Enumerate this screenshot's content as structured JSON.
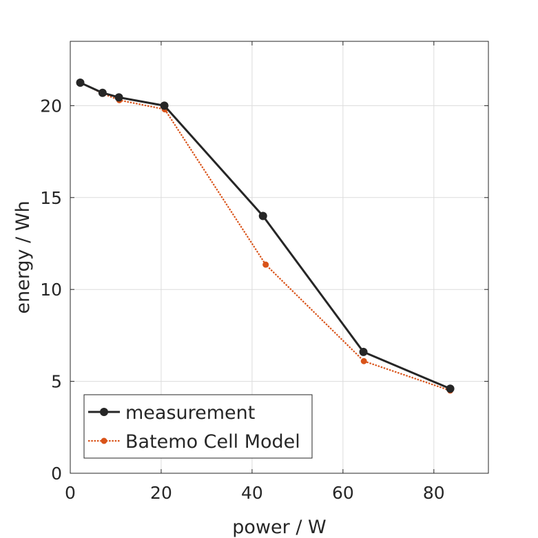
{
  "chart_data": {
    "type": "line",
    "title": "",
    "xlabel": "power / W",
    "ylabel": "energy / Wh",
    "xlim": [
      0,
      92
    ],
    "ylim": [
      0,
      23.5
    ],
    "xticks": [
      0,
      20,
      40,
      60,
      80
    ],
    "yticks": [
      0,
      5,
      10,
      15,
      20
    ],
    "grid": true,
    "legend_position": "bottom-left",
    "series": [
      {
        "name": "measurement",
        "color": "#262626",
        "line_style": "solid",
        "marker": "filled-circle",
        "x": [
          2.2,
          7.1,
          10.7,
          20.7,
          42.4,
          64.5,
          83.6
        ],
        "y": [
          21.25,
          20.7,
          20.45,
          20.0,
          14.0,
          6.6,
          4.6
        ]
      },
      {
        "name": "Batemo Cell Model",
        "color": "#d95319",
        "line_style": "dotted",
        "marker": "filled-circle",
        "x": [
          2.3,
          7.2,
          10.8,
          20.8,
          43.0,
          64.6,
          83.6
        ],
        "y": [
          21.25,
          20.65,
          20.3,
          19.8,
          11.35,
          6.1,
          4.5
        ]
      }
    ]
  }
}
